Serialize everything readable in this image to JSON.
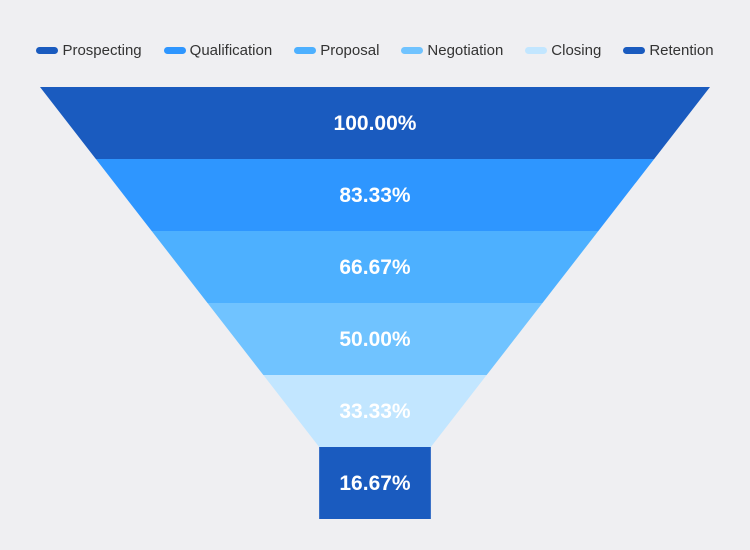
{
  "chart_data": {
    "type": "funnel",
    "categories": [
      "Prospecting",
      "Qualification",
      "Proposal",
      "Negotiation",
      "Closing",
      "Retention"
    ],
    "values": [
      100.0,
      83.33,
      66.67,
      50.0,
      33.33,
      16.67
    ],
    "labels": [
      "100.00%",
      "83.33%",
      "66.67%",
      "50.00%",
      "33.33%",
      "16.67%"
    ],
    "colors": [
      "#1a5bbf",
      "#2e96ff",
      "#4db0ff",
      "#70c3ff",
      "#c2e6ff",
      "#1a5bbf"
    ],
    "legend_position": "top-center",
    "sort": "descending",
    "title": "",
    "xlabel": "",
    "ylabel": ""
  }
}
